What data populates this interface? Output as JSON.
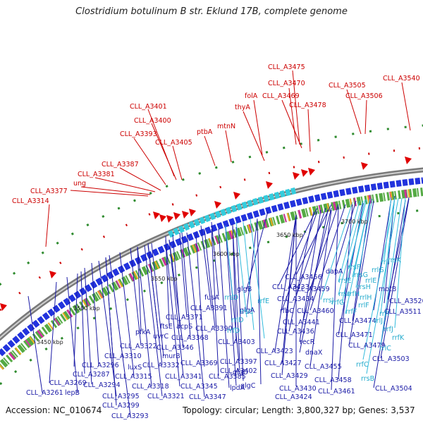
{
  "title": "Clostridium botulinum B str. Eklund 17B, complete genome",
  "footer": {
    "accession": "Accession: NC_010674",
    "summary": "Topology: circular; Length: 3,800,327 bp; Genes: 3,537"
  },
  "colors": {
    "forward": "#cc0000",
    "reverse": "#1a1aa6",
    "rna": "#22aacc",
    "backbone": "#9a9a9a"
  },
  "kbp_ticks": [
    "3450 kbp",
    "3500 kbp",
    "3550 kbp",
    "3600 kbp",
    "3650 kbp",
    "3700 kbp"
  ],
  "forward_labels": [
    "CLL_A3475",
    "CLL_A3540",
    "CLL_A3470",
    "CLL_A3505",
    "folA",
    "CLL_A3469",
    "CLL_A3506",
    "CLL_A3401",
    "thyA",
    "CLL_A3478",
    "CLL_A3400",
    "mtnN",
    "CLL_A3393",
    "ptbA",
    "CLL_A3405",
    "CLL_A3387",
    "CLL_A3381",
    "ung",
    "CLL_A3377",
    "CLL_A3314"
  ],
  "reverse_labels": [
    "CLL_A3456",
    "dapA",
    "CLL_A3433",
    "glgB",
    "CLL_A3459",
    "fusA",
    "CLL_A3434",
    "glgA",
    "rfbC",
    "CLL_A3460",
    "motB",
    "CLL_A3520",
    "CLL_A3511",
    "CLL_A3391",
    "CLL_A3474",
    "CLL_A3371",
    "CLL_A3441",
    "ftsE",
    "acpS",
    "uvrC",
    "CLL_A3436",
    "pfkA",
    "CLL_A3390",
    "CLL_A3368",
    "CLL_A3471",
    "recR",
    "CLL_A3346",
    "CLL_A3403",
    "CLL_A3423",
    "dnaX",
    "CLL_A3479",
    "CLL_A3322",
    "murB",
    "CLL_A3310",
    "CLL_A3332",
    "luxS",
    "CLL_A3397",
    "CLL_A3427",
    "CLL_A3455",
    "CLL_A3296",
    "CLL_A3402",
    "CLL_A3369",
    "CLL_A3315",
    "CLL_A3341",
    "CLL_A3287",
    "CLL_A3503",
    "CLL_A3318",
    "CLL_A3429",
    "glgD",
    "CLL_A3458",
    "CLL_A3294",
    "CLL_A3269",
    "CLL_A3345",
    "CLL_A3385",
    "glgC",
    "CLL_A3430",
    "CLL_A3424",
    "CLL_A3461",
    "CLL_A3295",
    "CLL_A3321",
    "lpdA",
    "CLL_A3347",
    "CLL_A3504",
    "CLL_A3261",
    "lepB",
    "CLL_A3299",
    "CLL_A3293"
  ],
  "rna_labels": [
    "rrsK",
    "rrsF",
    "rrsG",
    "rrsE",
    "rrsH",
    "rrsI",
    "rrsJ",
    "rrsD",
    "rrsC",
    "rrfE",
    "rrlD",
    "rrfD",
    "rrfG",
    "rrfH",
    "rrfF",
    "rrlE",
    "rrlF",
    "rrlH",
    "rrlG",
    "rrlI",
    "rrlJ",
    "rrfI",
    "rrfJ",
    "rrfK",
    "rrlC",
    "rrfC",
    "rrsB"
  ]
}
